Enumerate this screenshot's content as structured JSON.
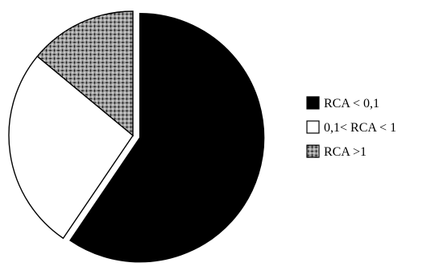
{
  "chart_data": {
    "type": "pie",
    "title": "",
    "slices": [
      {
        "label": "RCA < 0,1",
        "value": 59.5,
        "fill": "#000000",
        "pattern": "solid",
        "exploded": true
      },
      {
        "label": "0,1< RCA < 1",
        "value": 26.5,
        "fill": "#ffffff",
        "pattern": "none",
        "exploded": false
      },
      {
        "label": "RCA >1",
        "value": 14.0,
        "fill": "#ffffff",
        "pattern": "basket-weave",
        "exploded": false
      }
    ],
    "start_angle_deg": 0,
    "direction": "clockwise",
    "legend_position": "right",
    "legend": [
      {
        "label": "RCA < 0,1",
        "swatch": "solid-black"
      },
      {
        "label": "0,1< RCA < 1",
        "swatch": "white"
      },
      {
        "label": "RCA >1",
        "swatch": "basket-weave"
      }
    ],
    "colors": {
      "stroke": "#000000",
      "solid": "#000000",
      "empty": "#ffffff"
    }
  }
}
